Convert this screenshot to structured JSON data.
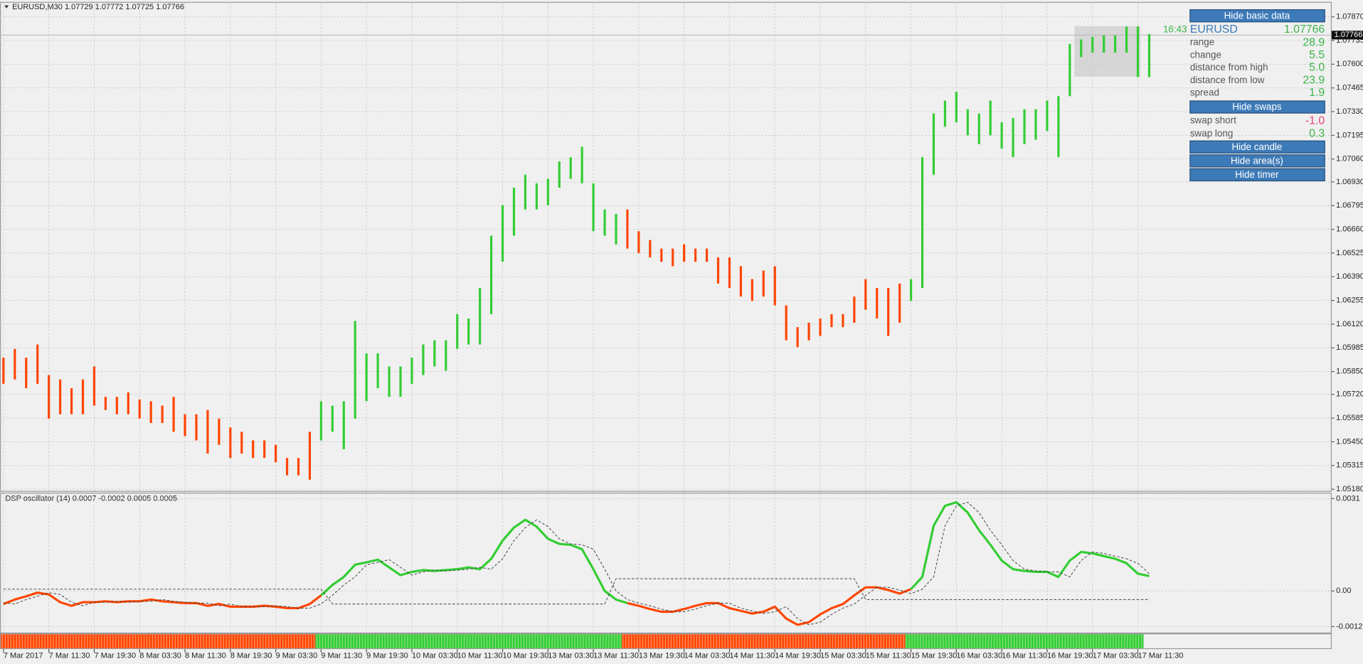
{
  "chart_data": [
    {
      "type": "bars",
      "title": "EURUSD,M30  1.07729 1.07772 1.07725 1.07766",
      "timer": "16:43",
      "last_price": {
        "value": 1.07766,
        "label": "1.07766"
      },
      "categories": [
        "7 Mar 2017",
        null,
        null,
        null,
        "7 Mar 11:30",
        null,
        null,
        null,
        "7 Mar 19:30",
        null,
        null,
        null,
        "8 Mar 03:30",
        null,
        null,
        null,
        "8 Mar 11:30",
        null,
        null,
        null,
        "8 Mar 19:30",
        null,
        null,
        null,
        "9 Mar 03:30",
        null,
        null,
        null,
        "9 Mar 11:30",
        null,
        null,
        null,
        "9 Mar 19:30",
        null,
        null,
        null,
        "10 Mar 03:30",
        null,
        null,
        null,
        "10 Mar 11:30",
        null,
        null,
        null,
        "10 Mar 19:30",
        null,
        null,
        null,
        "13 Mar 03:30",
        null,
        null,
        null,
        "13 Mar 11:30",
        null,
        null,
        null,
        "13 Mar 19:30",
        null,
        null,
        null,
        "14 Mar 03:30",
        null,
        null,
        null,
        "14 Mar 11:30",
        null,
        null,
        null,
        "14 Mar 19:30",
        null,
        null,
        null,
        "15 Mar 03:30",
        null,
        null,
        null,
        "15 Mar 11:30",
        null,
        null,
        null,
        "15 Mar 19:30",
        null,
        null,
        null,
        "16 Mar 03:30",
        null,
        null,
        null,
        "16 Mar 11:30",
        null,
        null,
        null,
        "16 Mar 19:30",
        null,
        null,
        null,
        "17 Mar 03:30",
        null,
        null,
        null,
        "17 Mar 11:30",
        null
      ],
      "high": [
        1.05929,
        1.05979,
        1.05929,
        1.06004,
        1.0583,
        1.05805,
        1.05755,
        1.05805,
        1.05879,
        1.05706,
        1.05706,
        1.05731,
        1.05691,
        1.05681,
        1.05656,
        1.05706,
        1.05607,
        1.05607,
        1.05631,
        1.05582,
        1.05532,
        1.05507,
        1.05458,
        1.05458,
        1.05433,
        1.05358,
        1.05358,
        1.05507,
        1.05681,
        1.05656,
        1.05681,
        1.06138,
        1.05954,
        1.05954,
        1.05879,
        1.05879,
        1.05929,
        1.06004,
        1.06028,
        1.06028,
        1.06177,
        1.06152,
        1.06326,
        1.06624,
        1.06798,
        1.06897,
        1.06971,
        1.06922,
        1.06947,
        1.07046,
        1.07071,
        1.0713,
        1.06922,
        1.06773,
        1.06748,
        1.06773,
        1.06649,
        1.06599,
        1.0655,
        1.0655,
        1.06574,
        1.0655,
        1.0655,
        1.065,
        1.065,
        1.0645,
        1.06376,
        1.06425,
        1.0645,
        1.06227,
        1.06103,
        1.06128,
        1.06152,
        1.06177,
        1.06177,
        1.06277,
        1.06376,
        1.06326,
        1.06326,
        1.06351,
        1.06376,
        1.07071,
        1.07319,
        1.07393,
        1.07443,
        1.07344,
        1.07319,
        1.07393,
        1.07269,
        1.07294,
        1.07344,
        1.07344,
        1.07393,
        1.07418,
        1.07716,
        1.07741,
        1.07756,
        1.07765,
        1.07765,
        1.07815,
        1.07815,
        1.07772
      ],
      "low": [
        1.0578,
        1.05805,
        1.05755,
        1.0578,
        1.05582,
        1.05607,
        1.05607,
        1.05607,
        1.05656,
        1.05631,
        1.05607,
        1.05607,
        1.05582,
        1.05557,
        1.05557,
        1.05507,
        1.05482,
        1.05458,
        1.05383,
        1.05433,
        1.05358,
        1.05383,
        1.05358,
        1.05358,
        1.05334,
        1.05259,
        1.05259,
        1.05234,
        1.05458,
        1.05507,
        1.05408,
        1.05582,
        1.05681,
        1.05755,
        1.05706,
        1.05706,
        1.0578,
        1.0583,
        1.05879,
        1.05855,
        1.05979,
        1.06004,
        1.06004,
        1.06177,
        1.06475,
        1.06624,
        1.06773,
        1.06773,
        1.06798,
        1.06897,
        1.06947,
        1.06922,
        1.06649,
        1.06624,
        1.06574,
        1.0655,
        1.06525,
        1.065,
        1.06475,
        1.0645,
        1.06475,
        1.06475,
        1.06475,
        1.06351,
        1.06326,
        1.06277,
        1.06252,
        1.06277,
        1.06227,
        1.06028,
        1.05989,
        1.06028,
        1.06053,
        1.06103,
        1.06103,
        1.06128,
        1.06202,
        1.06152,
        1.06053,
        1.06128,
        1.06252,
        1.06326,
        1.06971,
        1.07244,
        1.07269,
        1.07195,
        1.07145,
        1.07195,
        1.0712,
        1.07071,
        1.07145,
        1.0717,
        1.0722,
        1.07071,
        1.07418,
        1.07641,
        1.07666,
        1.07666,
        1.07666,
        1.07666,
        1.07527,
        1.07527
      ],
      "segments": [
        {
          "start": 0,
          "color": "#ff4500"
        },
        {
          "start": 28,
          "color": "#32cd32"
        },
        {
          "start": 55,
          "color": "#ff4500"
        },
        {
          "start": 80,
          "color": "#32cd32"
        }
      ],
      "ylim": [
        1.0517,
        1.0795
      ],
      "yticks": [
        {
          "value": 1.0787,
          "label": "1.07870"
        },
        {
          "value": 1.07735,
          "label": "1.07735"
        },
        {
          "value": 1.076,
          "label": "1.07600"
        },
        {
          "value": 1.07465,
          "label": "1.07465"
        },
        {
          "value": 1.0733,
          "label": "1.07330"
        },
        {
          "value": 1.07195,
          "label": "1.07195"
        },
        {
          "value": 1.0706,
          "label": "1.07060"
        },
        {
          "value": 1.0693,
          "label": "1.06930"
        },
        {
          "value": 1.06795,
          "label": "1.06795"
        },
        {
          "value": 1.0666,
          "label": "1.06660"
        },
        {
          "value": 1.06525,
          "label": "1.06525"
        },
        {
          "value": 1.0639,
          "label": "1.06390"
        },
        {
          "value": 1.06255,
          "label": "1.06255"
        },
        {
          "value": 1.0612,
          "label": "1.06120"
        },
        {
          "value": 1.05985,
          "label": "1.05985"
        },
        {
          "value": 1.0585,
          "label": "1.05850"
        },
        {
          "value": 1.0572,
          "label": "1.05720"
        },
        {
          "value": 1.05585,
          "label": "1.05585"
        },
        {
          "value": 1.0545,
          "label": "1.05450"
        },
        {
          "value": 1.05315,
          "label": "1.05315"
        },
        {
          "value": 1.0518,
          "label": "1.05180"
        }
      ],
      "grid": true
    },
    {
      "type": "line",
      "title": "DSP oscillator (14) 0.0007 -0.0002 0.0005 0.0005",
      "series": [
        {
          "color": "segments",
          "values": [
            -0.00044,
            -0.00029,
            -0.00018,
            -6e-05,
            -0.00012,
            -0.00038,
            -0.0005,
            -0.00038,
            -0.00038,
            -0.00035,
            -0.00038,
            -0.00035,
            -0.00035,
            -0.00029,
            -0.00035,
            -0.00038,
            -0.00041,
            -0.00041,
            -0.0005,
            -0.00044,
            -0.00053,
            -0.00053,
            -0.00053,
            -0.0005,
            -0.00053,
            -0.00058,
            -0.00058,
            -0.00044,
            -0.00015,
            0.0002,
            0.00047,
            0.00088,
            0.00096,
            0.00105,
            0.00079,
            0.00053,
            0.00064,
            0.0007,
            0.00067,
            0.0007,
            0.00073,
            0.00079,
            0.00073,
            0.00108,
            0.00169,
            0.00213,
            0.00239,
            0.00216,
            0.00175,
            0.00158,
            0.00155,
            0.0014,
            0.00073,
            0,
            -0.00029,
            -0.00041,
            -0.0005,
            -0.00061,
            -0.0007,
            -0.0007,
            -0.00061,
            -0.0005,
            -0.00041,
            -0.00041,
            -0.00058,
            -0.00067,
            -0.00076,
            -0.0007,
            -0.00053,
            -0.00093,
            -0.00114,
            -0.00105,
            -0.00079,
            -0.00058,
            -0.00044,
            -0.00015,
            0.00012,
            0.00012,
            3e-05,
            -9e-05,
            6e-05,
            0.00047,
            0.00219,
            0.00286,
            0.00298,
            0.00263,
            0.00204,
            0.00155,
            0.00102,
            0.00073,
            0.00067,
            0.00064,
            0.00064,
            0.00047,
            0.00102,
            0.00131,
            0.00126,
            0.00117,
            0.00108,
            0.00093,
            0.00058,
            0.0005
          ]
        },
        {
          "color": "#444444",
          "dashed": true,
          "values": [
            -0.0004,
            -0.00044,
            -0.00029,
            -0.00018,
            -6e-05,
            -0.00012,
            -0.00038,
            -0.0005,
            -0.00038,
            -0.00038,
            -0.00035,
            -0.00038,
            -0.00035,
            -0.00035,
            -0.00029,
            -0.00035,
            -0.00038,
            -0.00041,
            -0.00041,
            -0.0005,
            -0.00044,
            -0.00053,
            -0.00053,
            -0.00053,
            -0.0005,
            -0.00053,
            -0.00058,
            -0.00058,
            -0.00044,
            -0.00015,
            0.0002,
            0.00047,
            0.00088,
            0.00096,
            0.00105,
            0.00079,
            0.00053,
            0.00064,
            0.0007,
            0.00067,
            0.0007,
            0.00073,
            0.00079,
            0.00073,
            0.00108,
            0.00169,
            0.00213,
            0.00239,
            0.00216,
            0.00175,
            0.00158,
            0.00155,
            0.0014,
            0.00073,
            0,
            -0.00029,
            -0.00041,
            -0.0005,
            -0.00061,
            -0.0007,
            -0.0007,
            -0.00061,
            -0.0005,
            -0.00041,
            -0.00041,
            -0.00058,
            -0.00067,
            -0.00076,
            -0.0007,
            -0.00053,
            -0.00093,
            -0.00114,
            -0.00105,
            -0.00079,
            -0.00058,
            -0.00044,
            -0.00015,
            0.00012,
            0.00012,
            3e-05,
            -9e-05,
            6e-05,
            0.00047,
            0.00219,
            0.00286,
            0.00298,
            0.00263,
            0.00204,
            0.00155,
            0.00102,
            0.00073,
            0.00067,
            0.00064,
            0.00064,
            0.00047,
            0.00102,
            0.00131,
            0.00126,
            0.00117,
            0.00108,
            0.00093,
            0.00058
          ]
        },
        {
          "color": "#444444",
          "dashed": true,
          "values": [
            6e-05,
            6e-05,
            6e-05,
            6e-05,
            6e-05,
            6e-05,
            6e-05,
            6e-05,
            6e-05,
            6e-05,
            6e-05,
            6e-05,
            6e-05,
            6e-05,
            6e-05,
            6e-05,
            6e-05,
            6e-05,
            6e-05,
            6e-05,
            6e-05,
            6e-05,
            6e-05,
            6e-05,
            6e-05,
            6e-05,
            6e-05,
            6e-05,
            6e-05,
            -0.00044,
            -0.00044,
            -0.00044,
            -0.00044,
            -0.00044,
            -0.00044,
            -0.00044,
            -0.00044,
            -0.00044,
            -0.00044,
            -0.00044,
            -0.00044,
            -0.00044,
            -0.00044,
            -0.00044,
            -0.00044,
            -0.00044,
            -0.00044,
            -0.00044,
            -0.00044,
            -0.00044,
            -0.00044,
            -0.00044,
            -0.00044,
            -0.00044,
            0.00041,
            0.00041,
            0.00041,
            0.00041,
            0.00041,
            0.00041,
            0.00041,
            0.00041,
            0.00041,
            0.00041,
            0.00041,
            0.00041,
            0.00041,
            0.00041,
            0.00041,
            0.00041,
            0.00041,
            0.00041,
            0.00041,
            0.00041,
            0.00041,
            0.00041,
            -0.00029,
            -0.00029,
            -0.00029,
            -0.00029,
            -0.00029,
            -0.00029,
            -0.00029,
            -0.00029,
            -0.00029,
            -0.00029,
            -0.00029,
            -0.00029,
            -0.00029,
            -0.00029,
            -0.00029,
            -0.00029,
            -0.00029,
            -0.00029,
            -0.00029,
            -0.00029,
            -0.00029,
            -0.00029,
            -0.00029,
            -0.00029,
            -0.00029,
            -0.00029
          ]
        }
      ],
      "ylim": [
        -0.0014,
        0.0033
      ],
      "yticks": [
        0.0031,
        {
          "value": 0,
          "label": "0.00"
        },
        -0.0012
      ],
      "grid": true
    }
  ],
  "panel": {
    "buttons": [
      "Hide basic data",
      "Hide swaps",
      "Hide candle",
      "Hide area(s)",
      "Hide timer"
    ],
    "symbol": "EURUSD",
    "price": "1.07766",
    "rows": [
      [
        "range",
        "28.9"
      ],
      [
        "change",
        "5.5"
      ],
      [
        "distance from high",
        "5.0"
      ],
      [
        "distance from low",
        "23.9"
      ],
      [
        "spread",
        "1.9"
      ]
    ],
    "swaps": [
      [
        "swap short",
        "-1.0"
      ],
      [
        "swap long",
        "0.3"
      ]
    ]
  }
}
